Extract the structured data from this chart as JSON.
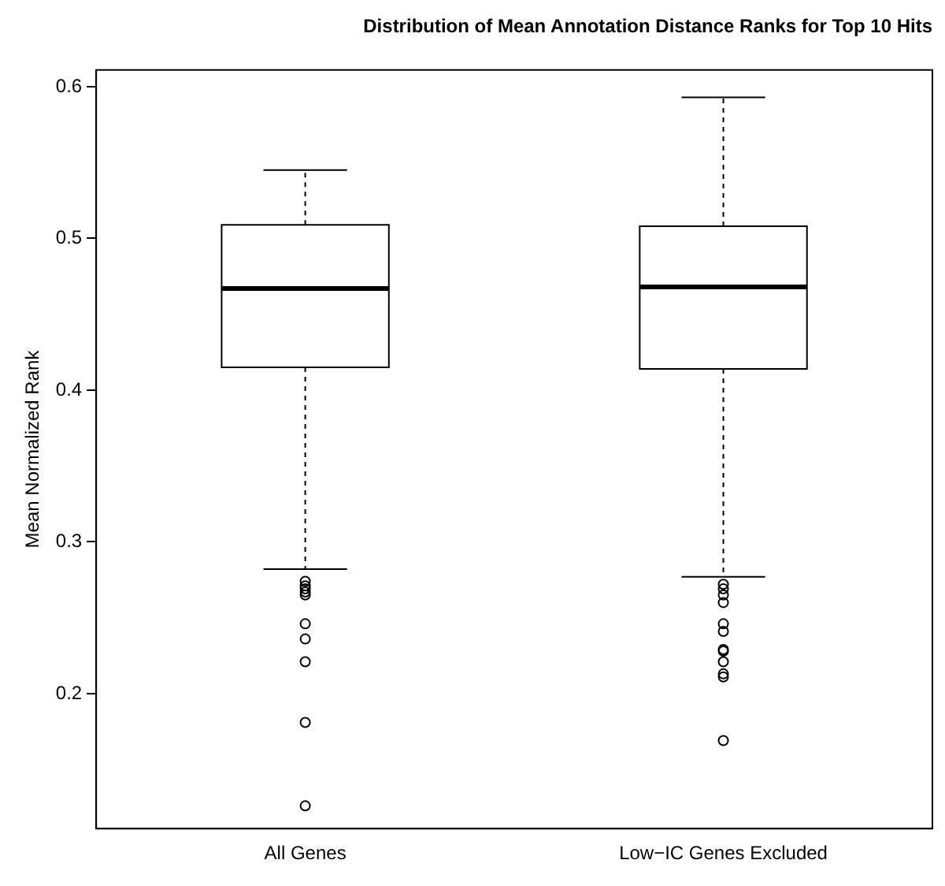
{
  "chart_data": {
    "type": "box",
    "title": "Distribution of Mean Annotation Distance Ranks for Top 10 Hits",
    "ylabel": "Mean Normalized Rank",
    "categories": [
      "All Genes",
      "Low−IC Genes Excluded"
    ],
    "boxes": [
      {
        "low": 0.282,
        "q1": 0.415,
        "median": 0.467,
        "q3": 0.509,
        "high": 0.545,
        "outliers": [
          0.274,
          0.271,
          0.269,
          0.267,
          0.265,
          0.246,
          0.236,
          0.221,
          0.181,
          0.126
        ]
      },
      {
        "low": 0.277,
        "q1": 0.414,
        "median": 0.468,
        "q3": 0.508,
        "high": 0.593,
        "outliers": [
          0.272,
          0.269,
          0.265,
          0.26,
          0.246,
          0.241,
          0.229,
          0.228,
          0.221,
          0.213,
          0.211,
          0.169
        ]
      }
    ],
    "color": "#000000",
    "ylim": [
      0.111,
      0.611
    ],
    "yticks": [
      0.2,
      0.3,
      0.4,
      0.5,
      0.6
    ],
    "grid": false,
    "legend": false
  }
}
